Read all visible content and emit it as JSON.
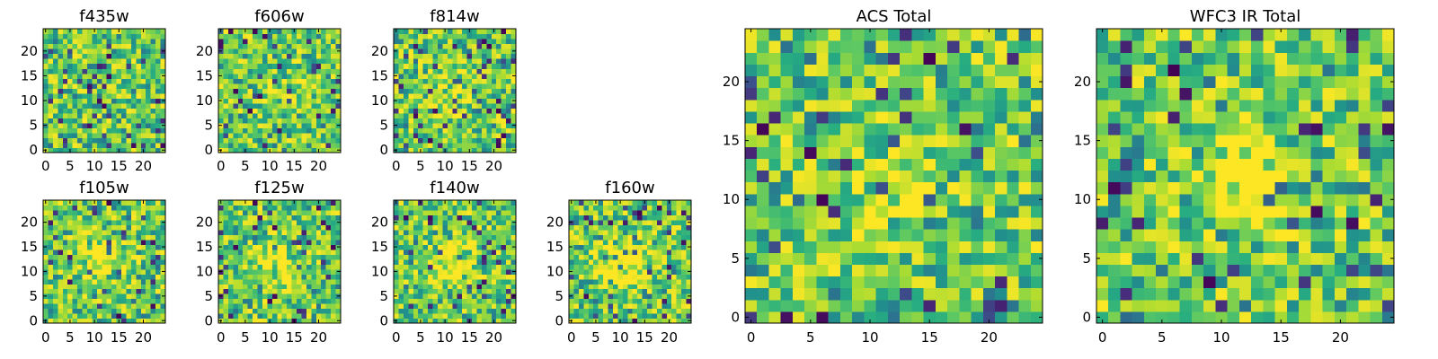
{
  "chart_data": [
    {
      "type": "heatmap",
      "title": "f435w",
      "grid_size": 25,
      "xlim": [
        0,
        24
      ],
      "ylim": [
        0,
        24
      ],
      "xticks": [
        0,
        5,
        10,
        15,
        20
      ],
      "yticks": [
        0,
        5,
        10,
        15,
        20
      ],
      "colormap": "viridis",
      "seed": 435,
      "peak": {
        "x": 12,
        "y": 12,
        "amplitude": 0.0,
        "sigma": 3.0
      }
    },
    {
      "type": "heatmap",
      "title": "f606w",
      "grid_size": 25,
      "xlim": [
        0,
        24
      ],
      "ylim": [
        0,
        24
      ],
      "xticks": [
        0,
        5,
        10,
        15,
        20
      ],
      "yticks": [
        0,
        5,
        10,
        15,
        20
      ],
      "colormap": "viridis",
      "seed": 606,
      "peak": {
        "x": 12,
        "y": 12,
        "amplitude": 0.12,
        "sigma": 3.0
      }
    },
    {
      "type": "heatmap",
      "title": "f814w",
      "grid_size": 25,
      "xlim": [
        0,
        24
      ],
      "ylim": [
        0,
        24
      ],
      "xticks": [
        0,
        5,
        10,
        15,
        20
      ],
      "yticks": [
        0,
        5,
        10,
        15,
        20
      ],
      "colormap": "viridis",
      "seed": 814,
      "peak": {
        "x": 12,
        "y": 12,
        "amplitude": 0.15,
        "sigma": 3.0
      }
    },
    {
      "type": "heatmap",
      "title": "f105w",
      "grid_size": 25,
      "xlim": [
        0,
        24
      ],
      "ylim": [
        0,
        24
      ],
      "xticks": [
        0,
        5,
        10,
        15,
        20
      ],
      "yticks": [
        0,
        5,
        10,
        15,
        20
      ],
      "colormap": "viridis",
      "seed": 105,
      "peak": {
        "x": 12,
        "y": 13,
        "amplitude": 0.3,
        "sigma": 2.8
      }
    },
    {
      "type": "heatmap",
      "title": "f125w",
      "grid_size": 25,
      "xlim": [
        0,
        24
      ],
      "ylim": [
        0,
        24
      ],
      "xticks": [
        0,
        5,
        10,
        15,
        20
      ],
      "yticks": [
        0,
        5,
        10,
        15,
        20
      ],
      "colormap": "viridis",
      "seed": 125,
      "peak": {
        "x": 12,
        "y": 12,
        "amplitude": 0.28,
        "sigma": 3.0
      }
    },
    {
      "type": "heatmap",
      "title": "f140w",
      "grid_size": 25,
      "xlim": [
        0,
        24
      ],
      "ylim": [
        0,
        24
      ],
      "xticks": [
        0,
        5,
        10,
        15,
        20
      ],
      "yticks": [
        0,
        5,
        10,
        15,
        20
      ],
      "colormap": "viridis",
      "seed": 140,
      "peak": {
        "x": 12,
        "y": 12,
        "amplitude": 0.3,
        "sigma": 3.0
      }
    },
    {
      "type": "heatmap",
      "title": "f160w",
      "grid_size": 25,
      "xlim": [
        0,
        24
      ],
      "ylim": [
        0,
        24
      ],
      "xticks": [
        0,
        5,
        10,
        15,
        20
      ],
      "yticks": [
        0,
        5,
        10,
        15,
        20
      ],
      "colormap": "viridis",
      "seed": 160,
      "peak": {
        "x": 11,
        "y": 12,
        "amplitude": 0.35,
        "sigma": 3.0
      }
    },
    {
      "type": "heatmap",
      "title": "ACS Total",
      "grid_size": 25,
      "xlim": [
        0,
        24
      ],
      "ylim": [
        0,
        24
      ],
      "xticks": [
        0,
        5,
        10,
        15,
        20
      ],
      "yticks": [
        0,
        5,
        10,
        15,
        20
      ],
      "colormap": "viridis",
      "seed": 77,
      "peak": {
        "x": 12,
        "y": 11,
        "amplitude": 0.25,
        "sigma": 2.0
      }
    },
    {
      "type": "heatmap",
      "title": "WFC3 IR Total",
      "grid_size": 25,
      "xlim": [
        0,
        24
      ],
      "ylim": [
        0,
        24
      ],
      "xticks": [
        0,
        5,
        10,
        15,
        20
      ],
      "yticks": [
        0,
        5,
        10,
        15,
        20
      ],
      "colormap": "viridis",
      "seed": 99,
      "peak": {
        "x": 12,
        "y": 12,
        "amplitude": 0.4,
        "sigma": 2.5
      }
    }
  ]
}
